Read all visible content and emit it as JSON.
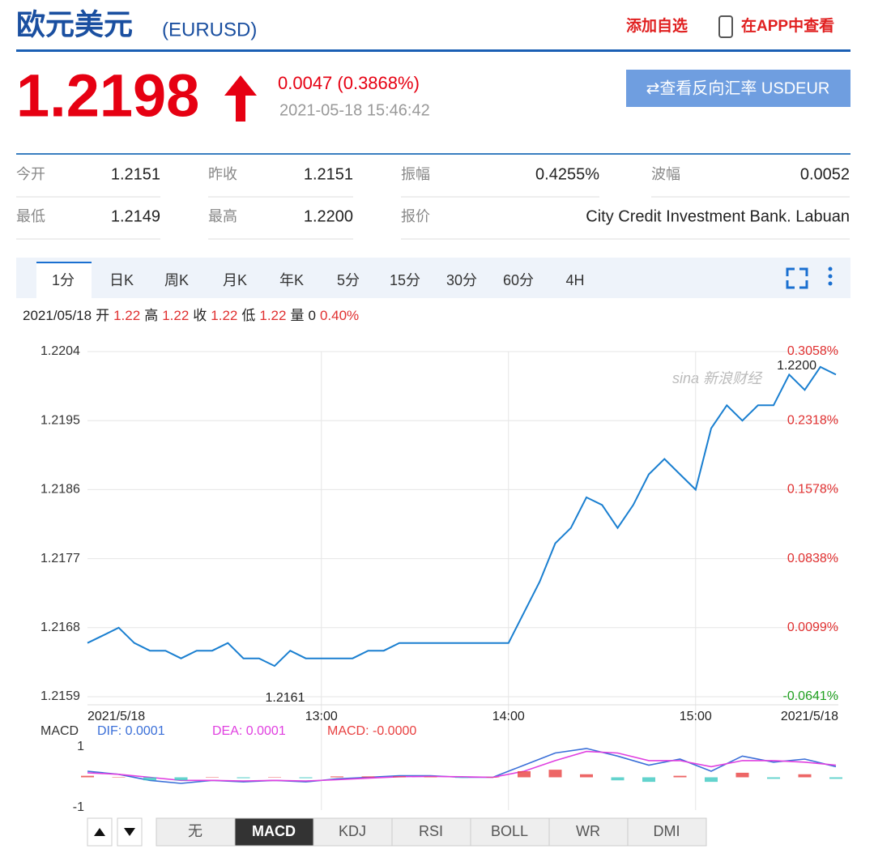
{
  "header": {
    "title": "欧元美元",
    "code": "(EURUSD)",
    "add": "添加自选",
    "app": "在APP中查看"
  },
  "quote": {
    "price": "1.2198",
    "change": "0.0047 (0.3868%)",
    "time": "2021-05-18 15:46:42",
    "reverse": "⇄查看反向汇率 USDEUR"
  },
  "stats": [
    [
      {
        "label": "今开",
        "value": "1.2151"
      },
      {
        "label": "昨收",
        "value": "1.2151"
      },
      {
        "label": "振幅",
        "value": "0.4255%"
      },
      {
        "label": "波幅",
        "value": "0.0052"
      }
    ],
    [
      {
        "label": "最低",
        "value": "1.2149"
      },
      {
        "label": "最高",
        "value": "1.2200"
      },
      {
        "label": "报价",
        "value": "City Credit Investment Bank. Labuan"
      }
    ]
  ],
  "tabs": [
    "1分",
    "日K",
    "周K",
    "月K",
    "年K",
    "5分",
    "15分",
    "30分",
    "60分",
    "4H"
  ],
  "ohlc": {
    "date": "2021/05/18",
    "items": [
      {
        "label": "开",
        "value": "1.22"
      },
      {
        "label": "高",
        "value": "1.22"
      },
      {
        "label": "收",
        "value": "1.22"
      },
      {
        "label": "低",
        "value": "1.22"
      },
      {
        "label": "量",
        "value": "0"
      }
    ],
    "change": "0.40%"
  },
  "watermark": "sina 新浪财经",
  "indicator_tabs": [
    "无",
    "MACD",
    "KDJ",
    "RSI",
    "BOLL",
    "WR",
    "DMI"
  ],
  "chart_data": [
    {
      "type": "line",
      "categories": [
        "2021/5/18",
        null,
        null,
        null,
        null,
        null,
        null,
        null,
        null,
        null,
        null,
        null,
        null,
        null,
        null,
        "13:00",
        null,
        null,
        null,
        null,
        null,
        null,
        null,
        null,
        null,
        null,
        null,
        "14:00",
        null,
        null,
        null,
        null,
        null,
        null,
        null,
        null,
        null,
        null,
        null,
        "15:00",
        null,
        null,
        null,
        null,
        null,
        null,
        null,
        null,
        "2021/5/18"
      ],
      "series": [
        {
          "name": "EURUSD",
          "color": "#1a7fd0",
          "values": [
            1.2166,
            1.2167,
            1.2168,
            1.2166,
            1.2165,
            1.2165,
            1.2164,
            1.2165,
            1.2165,
            1.2166,
            1.2164,
            1.2164,
            1.2163,
            1.2165,
            1.2164,
            1.2164,
            1.2164,
            1.2164,
            1.2165,
            1.2165,
            1.2166,
            1.2166,
            1.2166,
            1.2166,
            1.2166,
            1.2166,
            1.2166,
            1.2166,
            1.217,
            1.2174,
            1.2179,
            1.2181,
            1.2185,
            1.2184,
            1.2181,
            1.2184,
            1.2188,
            1.219,
            1.2188,
            1.2186,
            1.2194,
            1.2197,
            1.2195,
            1.2197,
            1.2197,
            1.2201,
            1.2199,
            1.2202,
            1.2201
          ]
        }
      ],
      "ylim": [
        1.2159,
        1.2204
      ],
      "yticks": [
        1.2204,
        1.2195,
        1.2186,
        1.2177,
        1.2168,
        1.2159
      ],
      "y2lim": [
        -0.0641,
        0.3058
      ],
      "y2ticks": [
        {
          "value": 0.3058,
          "label": "0.3058%"
        },
        {
          "value": 0.2318,
          "label": "0.2318%"
        },
        {
          "value": 0.1578,
          "label": "0.1578%"
        },
        {
          "value": 0.0838,
          "label": "0.0838%"
        },
        {
          "value": 0.0099,
          "label": "0.0099%"
        },
        {
          "value": -0.0641,
          "label": "-0.0641%"
        }
      ],
      "y2_color": "#e03030",
      "y2_negative_color": "#20a020",
      "annotations": [
        "1.2200",
        "1.2161"
      ],
      "grid": true
    },
    {
      "type": "macd",
      "title": "MACD",
      "series": [
        {
          "name": "DIF: 0.0001",
          "color": "#3a6fd8",
          "values": [
            0.2,
            0.1,
            -0.1,
            -0.2,
            -0.1,
            -0.15,
            -0.1,
            -0.15,
            -0.05,
            0,
            0.05,
            0.05,
            0,
            0,
            0.4,
            0.8,
            0.95,
            0.7,
            0.4,
            0.6,
            0.2,
            0.7,
            0.5,
            0.6,
            0.35
          ]
        },
        {
          "name": "DEA: 0.0001",
          "color": "#e040e0",
          "values": [
            0.15,
            0.1,
            0,
            -0.1,
            -0.1,
            -0.12,
            -0.1,
            -0.12,
            -0.08,
            -0.03,
            0.02,
            0.03,
            0.02,
            0,
            0.2,
            0.55,
            0.85,
            0.8,
            0.55,
            0.55,
            0.35,
            0.55,
            0.55,
            0.5,
            0.4
          ]
        },
        {
          "name": "MACD: -0.0000",
          "type": "bar",
          "color": "#e84040",
          "negative_color": "#3cc8c0",
          "values": [
            0.05,
            0,
            -0.1,
            -0.1,
            0,
            -0.03,
            0,
            -0.03,
            0.03,
            0.03,
            0.03,
            0.02,
            -0.02,
            0,
            0.2,
            0.25,
            0.1,
            -0.1,
            -0.15,
            0.05,
            -0.15,
            0.15,
            -0.05,
            0.1,
            -0.05
          ]
        }
      ],
      "ylim": [
        -1,
        1
      ],
      "yticks": [
        1,
        -1
      ]
    }
  ]
}
